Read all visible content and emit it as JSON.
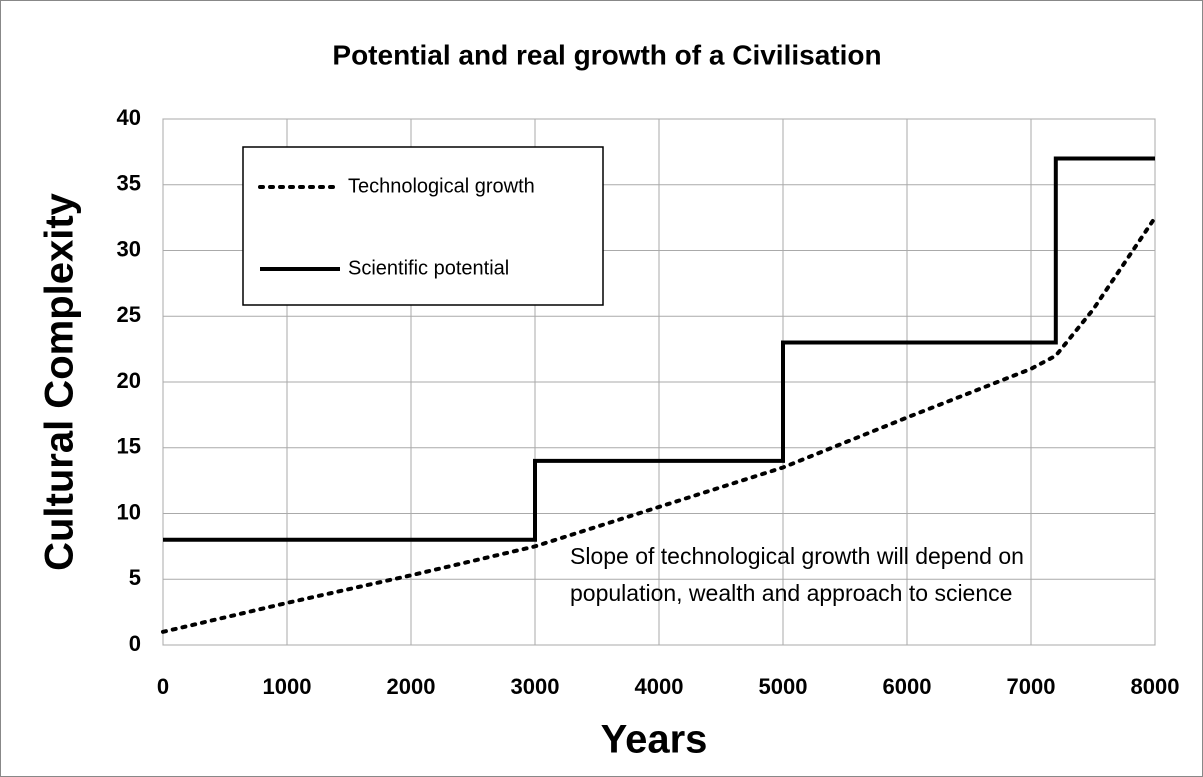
{
  "chart_data": {
    "type": "line",
    "title": "Potential and real growth of a Civilisation",
    "xlabel": "Years",
    "ylabel": "Cultural Complexity",
    "annotation": [
      "Slope of technological growth will depend on",
      "population, wealth and approach to science"
    ],
    "xlim": [
      0,
      8000
    ],
    "xticks": [
      0,
      1000,
      2000,
      3000,
      4000,
      5000,
      6000,
      7000,
      8000
    ],
    "ylim": [
      0,
      40
    ],
    "yticks": [
      0,
      5,
      10,
      15,
      20,
      25,
      30,
      35,
      40
    ],
    "grid": true,
    "series": [
      {
        "name": "Technological growth",
        "color": "#000000",
        "style": "dotted",
        "x": [
          0,
          1000,
          2000,
          3000,
          4000,
          5000,
          6000,
          7000,
          7200,
          7500,
          8000
        ],
        "values": [
          1,
          3.2,
          5.3,
          7.5,
          10.5,
          13.5,
          17.3,
          21,
          22,
          25.5,
          32.5
        ]
      },
      {
        "name": "Scientific potential",
        "color": "#000000",
        "style": "solid",
        "x": [
          0,
          3000,
          3000,
          5000,
          5000,
          7200,
          7200,
          8000
        ],
        "values": [
          8,
          8,
          14,
          14,
          23,
          23,
          37,
          37
        ]
      }
    ]
  }
}
